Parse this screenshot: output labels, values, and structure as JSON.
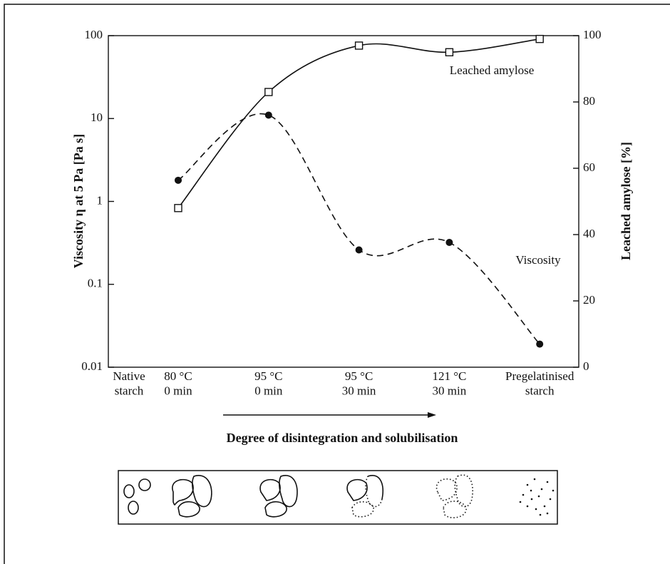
{
  "chart_data": {
    "type": "line",
    "x_label": "Degree of disintegration and solubilisation",
    "y_label": "Viscosity η at 5 Pa [Pa s]",
    "y2_label": "Leached amylose [%]",
    "categories": [
      "Native\nstarch",
      "80 °C\n0 min",
      "95 °C\n0 min",
      "95 °C\n30 min",
      "121 °C\n30 min",
      "Pregelatinised\nstarch"
    ],
    "series": [
      {
        "name": "Viscosity",
        "color": "#111111",
        "marker": "filled-circle",
        "dash": true,
        "values": [
          null,
          1.8,
          11,
          0.26,
          0.32,
          0.019
        ]
      },
      {
        "name": "Leached amylose",
        "color": "#111111",
        "marker": "open-square",
        "dash": false,
        "axis": "y2",
        "values": [
          null,
          48,
          83,
          97,
          95,
          99
        ]
      }
    ],
    "yscale": "log",
    "ylim": [
      0.01,
      100
    ],
    "yticks": [
      0.01,
      0.1,
      1,
      10,
      100
    ],
    "y2lim": [
      0,
      100
    ],
    "y2ticks": [
      0,
      20,
      40,
      60,
      80,
      100
    ]
  }
}
